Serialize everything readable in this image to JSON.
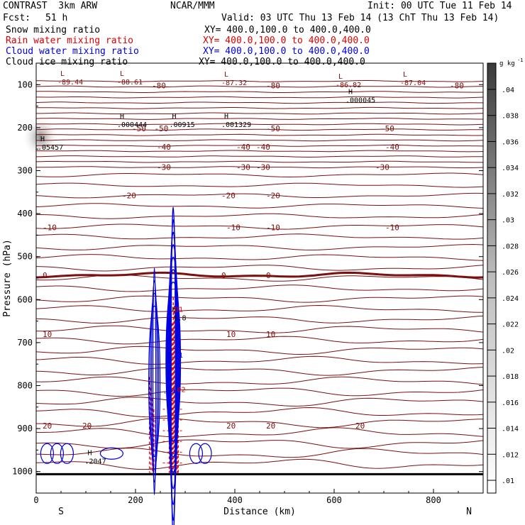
{
  "header": {
    "model": "CONTRAST  3km ARW",
    "org": "NCAR/MMM",
    "init": "Init: 00 UTC Tue 11 Feb 14",
    "fcst_label": "Fcst:",
    "fcst_value": "51 h",
    "valid": "Valid: 03 UTC Thu 13 Feb 14 (13 ChT Thu 13 Feb 14)"
  },
  "fields": [
    {
      "name": "Snow mixing ratio",
      "xy": "XY= 400.0,100.0 to 400.0,400.0",
      "color": "#000000"
    },
    {
      "name": "Rain water mixing ratio",
      "xy": "XY= 400.0,100.0 to 400.0,400.0",
      "color": "#e00000"
    },
    {
      "name": "Cloud water mixing ratio",
      "xy": "XY= 400.0,100.0 to 400.0,400.0",
      "color": "#0000e0"
    },
    {
      "name": "Cloud ice mixing ratio",
      "xy": "XY= 400.0,100.0 to 400.0,400.0",
      "color": "#000000"
    }
  ],
  "chart_data": {
    "type": "contour-cross-section",
    "xlabel": "Distance (km)",
    "ylabel": "Pressure (hPa)",
    "xlim": [
      0,
      900
    ],
    "ylim": [
      1050,
      50
    ],
    "x_ticks": [
      0,
      200,
      400,
      600,
      800
    ],
    "y_ticks": [
      100,
      200,
      300,
      400,
      500,
      600,
      700,
      800,
      900,
      1000
    ],
    "x_end_labels": {
      "left": "S",
      "right": "N"
    },
    "temperature_isotherms": [
      {
        "value": "-80",
        "p": 102,
        "label_x": [
          230,
          460,
          830
        ]
      },
      {
        "value": "-50",
        "p": 202,
        "label_x": [
          190,
          235,
          460,
          690
        ]
      },
      {
        "value": "-40",
        "p": 245,
        "label_x": [
          240,
          400,
          440,
          700
        ]
      },
      {
        "value": "-30",
        "p": 292,
        "label_x": [
          240,
          400,
          440,
          680
        ]
      },
      {
        "value": "-20",
        "p": 358,
        "label_x": [
          170,
          370,
          460
        ]
      },
      {
        "value": "-10",
        "p": 432,
        "label_x": [
          10,
          380,
          460,
          700
        ]
      },
      {
        "value": "0",
        "p": 543,
        "label_x": [
          10,
          370,
          460
        ]
      },
      {
        "value": "10",
        "p": 680,
        "label_x": [
          10,
          380,
          460
        ]
      },
      {
        "value": "20",
        "p": 893,
        "label_x": [
          10,
          90,
          380,
          460,
          640
        ]
      }
    ],
    "extrema_labels": [
      {
        "type": "L",
        "value": "-89.44",
        "x": 40,
        "p": 83
      },
      {
        "type": "L",
        "value": "-88.61",
        "x": 160,
        "p": 83
      },
      {
        "type": "L",
        "value": "-87.32",
        "x": 370,
        "p": 85
      },
      {
        "type": "L",
        "value": "-86.82",
        "x": 600,
        "p": 90
      },
      {
        "type": "L",
        "value": "-87.04",
        "x": 730,
        "p": 85
      },
      {
        "type": "H",
        "value": ".000045",
        "x": 620,
        "p": 125
      },
      {
        "type": "H",
        "value": ".000444",
        "x": 160,
        "p": 182
      },
      {
        "type": "H",
        "value": ".00915",
        "x": 265,
        "p": 182
      },
      {
        "type": "H",
        "value": ".001329",
        "x": 370,
        "p": 182
      },
      {
        "type": "H",
        "value": ".05457",
        "x": 0,
        "p": 235
      },
      {
        "type": "H",
        "value": ".1.8",
        "x": 265,
        "p": 632
      },
      {
        "type": "H",
        "value": ".2047",
        "x": 95,
        "p": 965
      }
    ],
    "hydrometeor_labels": [
      {
        "text": ".01",
        "x": 270,
        "p": 628,
        "color": "#e00000"
      },
      {
        "text": ".01",
        "x": 270,
        "p": 735,
        "color": "#0000e0"
      },
      {
        "text": ".02",
        "x": 275,
        "p": 815,
        "color": "#e00000"
      },
      {
        "text": ".04",
        "x": 255,
        "p": 818,
        "color": "#0000e0"
      }
    ],
    "colorbar": {
      "unit": "g kg",
      "unit_exp": "-1",
      "ticks": [
        ".04",
        ".038",
        ".036",
        ".034",
        ".032",
        ".03",
        ".028",
        ".026",
        ".024",
        ".022",
        ".02",
        ".018",
        ".016",
        ".014",
        ".012",
        ".01"
      ]
    }
  }
}
